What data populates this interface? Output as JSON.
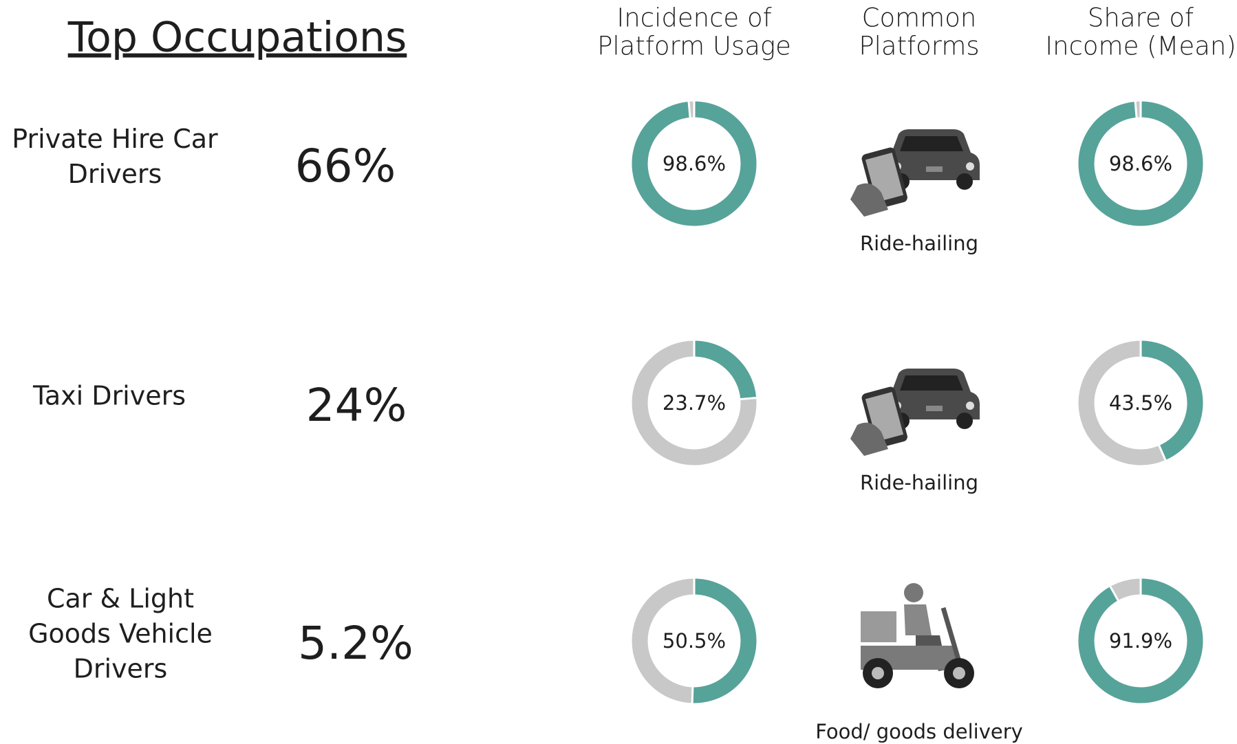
{
  "title": "Top Occupations",
  "headers": [
    [
      "Incidence of",
      "Platform Usage"
    ],
    [
      "Common",
      "Platforms"
    ],
    [
      "Share of",
      "Income (Mean)"
    ]
  ],
  "rows": [
    {
      "occupation": [
        "Private Hire Car",
        "Drivers"
      ],
      "share": "66%",
      "incidence": {
        "value": 98.6,
        "label": "98.6%"
      },
      "platform": "Ride-hailing",
      "income_share": {
        "value": 98.6,
        "label": "98.6%"
      }
    },
    {
      "occupation": [
        "Taxi Drivers"
      ],
      "share": "24%",
      "incidence": {
        "value": 23.7,
        "label": "23.7%"
      },
      "platform": "Ride-hailing",
      "income_share": {
        "value": 43.5,
        "label": "43.5%"
      }
    },
    {
      "occupation": [
        "Car & Light",
        "Goods Vehicle",
        "Drivers"
      ],
      "share": "5.2%",
      "incidence": {
        "value": 50.5,
        "label": "50.5%"
      },
      "platform": "Food/ goods delivery",
      "income_share": {
        "value": 91.9,
        "label": "91.9%"
      }
    }
  ]
}
